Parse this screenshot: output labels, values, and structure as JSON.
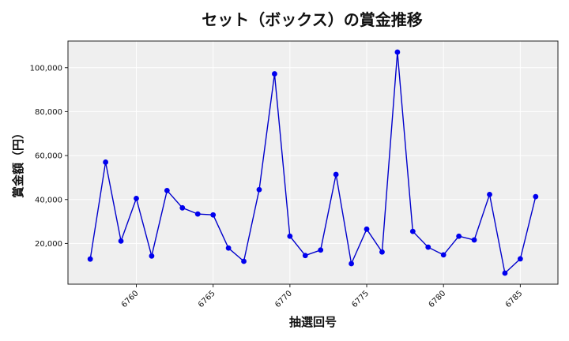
{
  "chart_data": {
    "type": "line",
    "title": "セット（ボックス）の賞金推移",
    "xlabel": "抽選回号",
    "ylabel": "賞金額（円）",
    "x": [
      6757,
      6758,
      6759,
      6760,
      6761,
      6762,
      6763,
      6764,
      6765,
      6766,
      6767,
      6768,
      6769,
      6770,
      6771,
      6772,
      6773,
      6774,
      6775,
      6776,
      6777,
      6778,
      6779,
      6780,
      6781,
      6782,
      6783,
      6784,
      6785,
      6786
    ],
    "values": [
      12900,
      57000,
      21100,
      40500,
      14300,
      44100,
      36200,
      33400,
      33000,
      17900,
      11900,
      44500,
      97200,
      23300,
      14500,
      17000,
      51400,
      10800,
      26500,
      16100,
      107100,
      25500,
      18300,
      14800,
      23300,
      21600,
      42300,
      6500,
      13000,
      41300
    ],
    "xticks": [
      "6760",
      "6765",
      "6770",
      "6775",
      "6780",
      "6785"
    ],
    "yticks": [
      "20,000",
      "40,000",
      "60,000",
      "80,000",
      "100,000"
    ],
    "xlim": [
      6755.55,
      6787.45
    ],
    "ylim": [
      1470,
      112130
    ],
    "grid": true,
    "colors": {
      "line": "#0000cc",
      "marker": "#0000ee",
      "plot_bg": "#efefef",
      "grid": "#ffffff"
    }
  }
}
